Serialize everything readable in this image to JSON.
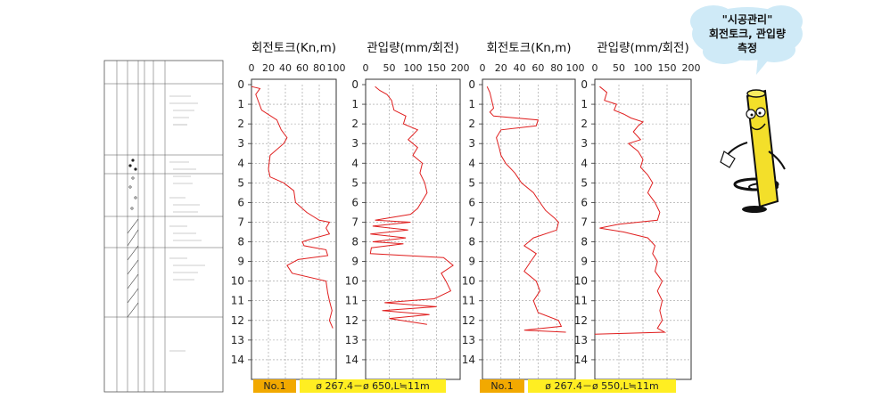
{
  "colors": {
    "series": "#e02020",
    "label_orange": "#f2a900",
    "label_yellow": "#ffee22",
    "bubble": "#cfeaf7",
    "mascot": "#f3df2a"
  },
  "bubble": {
    "line1": "\"시공관리\"",
    "line2": "회전토크, 관입량",
    "line3": "측정"
  },
  "labels": {
    "left": {
      "no": "No.1",
      "spec": "ø 267.4－ø 650,L≒11m"
    },
    "right": {
      "no": "No.1",
      "spec": "ø 267.4－ø 550,L≒11m"
    }
  },
  "boring_log": {
    "note": ""
  },
  "chart_data": [
    {
      "type": "line",
      "title": "회전토크(Kn,m)",
      "x_ticks": [
        0,
        20,
        40,
        60,
        80,
        100
      ],
      "xlim": [
        0,
        100
      ],
      "ylim": [
        0,
        15
      ],
      "y_ticks": [
        0,
        1,
        2,
        3,
        4,
        5,
        6,
        7,
        8,
        9,
        10,
        11,
        12,
        13,
        14
      ],
      "y_inverted": true,
      "series": [
        {
          "points": [
            [
              0,
              0.1
            ],
            [
              10,
              0.2
            ],
            [
              5,
              0.5
            ],
            [
              12,
              1.3
            ],
            [
              30,
              1.8
            ],
            [
              35,
              2.3
            ],
            [
              42,
              2.7
            ],
            [
              38,
              3.0
            ],
            [
              22,
              3.6
            ],
            [
              20,
              4.3
            ],
            [
              22,
              4.7
            ],
            [
              38,
              5.0
            ],
            [
              50,
              5.4
            ],
            [
              52,
              6.0
            ],
            [
              65,
              6.5
            ],
            [
              80,
              6.9
            ],
            [
              92,
              7.0
            ],
            [
              88,
              7.3
            ],
            [
              92,
              7.6
            ],
            [
              75,
              7.8
            ],
            [
              60,
              8.0
            ],
            [
              62,
              8.2
            ],
            [
              75,
              8.3
            ],
            [
              88,
              8.4
            ],
            [
              90,
              8.7
            ],
            [
              55,
              8.9
            ],
            [
              42,
              9.2
            ],
            [
              48,
              9.6
            ],
            [
              88,
              10.0
            ],
            [
              90,
              10.6
            ],
            [
              92,
              11.0
            ],
            [
              95,
              11.5
            ],
            [
              92,
              12.0
            ],
            [
              96,
              12.4
            ]
          ]
        }
      ]
    },
    {
      "type": "line",
      "title": "관입량(mm/회전)",
      "x_ticks": [
        0,
        50,
        100,
        150,
        200
      ],
      "xlim": [
        0,
        200
      ],
      "ylim": [
        0,
        15
      ],
      "y_ticks": [
        0,
        1,
        2,
        3,
        4,
        5,
        6,
        7,
        8,
        9,
        10,
        11,
        12,
        13,
        14
      ],
      "y_inverted": true,
      "series": [
        {
          "points": [
            [
              20,
              0.1
            ],
            [
              30,
              0.3
            ],
            [
              45,
              0.5
            ],
            [
              55,
              0.8
            ],
            [
              60,
              1.3
            ],
            [
              85,
              1.6
            ],
            [
              80,
              2.0
            ],
            [
              110,
              2.3
            ],
            [
              90,
              2.8
            ],
            [
              110,
              3.2
            ],
            [
              100,
              3.6
            ],
            [
              120,
              4.0
            ],
            [
              115,
              4.5
            ],
            [
              125,
              5.0
            ],
            [
              130,
              5.5
            ],
            [
              120,
              5.9
            ],
            [
              110,
              6.3
            ],
            [
              95,
              6.6
            ],
            [
              20,
              6.9
            ],
            [
              95,
              7.0
            ],
            [
              15,
              7.2
            ],
            [
              90,
              7.4
            ],
            [
              10,
              7.6
            ],
            [
              85,
              7.8
            ],
            [
              15,
              8.0
            ],
            [
              80,
              8.1
            ],
            [
              12,
              8.3
            ],
            [
              10,
              8.6
            ],
            [
              165,
              8.8
            ],
            [
              185,
              9.2
            ],
            [
              160,
              9.6
            ],
            [
              170,
              10.0
            ],
            [
              180,
              10.5
            ],
            [
              145,
              10.9
            ],
            [
              40,
              11.1
            ],
            [
              150,
              11.3
            ],
            [
              35,
              11.5
            ],
            [
              135,
              11.7
            ],
            [
              50,
              11.9
            ],
            [
              130,
              12.2
            ]
          ]
        }
      ]
    },
    {
      "type": "line",
      "title": "회전토크(Kn,m)",
      "x_ticks": [
        0,
        20,
        40,
        60,
        80,
        100
      ],
      "xlim": [
        0,
        100
      ],
      "ylim": [
        0,
        15
      ],
      "y_ticks": [
        0,
        1,
        2,
        3,
        4,
        5,
        6,
        7,
        8,
        9,
        10,
        11,
        12,
        13,
        14
      ],
      "y_inverted": true,
      "series": [
        {
          "points": [
            [
              5,
              0.1
            ],
            [
              8,
              0.4
            ],
            [
              10,
              0.8
            ],
            [
              12,
              1.2
            ],
            [
              8,
              1.4
            ],
            [
              12,
              1.6
            ],
            [
              60,
              1.8
            ],
            [
              58,
              2.1
            ],
            [
              20,
              2.3
            ],
            [
              15,
              2.7
            ],
            [
              18,
              3.2
            ],
            [
              20,
              3.6
            ],
            [
              25,
              4.0
            ],
            [
              35,
              4.5
            ],
            [
              42,
              5.0
            ],
            [
              55,
              5.5
            ],
            [
              62,
              6.0
            ],
            [
              68,
              6.4
            ],
            [
              78,
              6.8
            ],
            [
              82,
              7.0
            ],
            [
              80,
              7.4
            ],
            [
              55,
              7.8
            ],
            [
              45,
              8.2
            ],
            [
              58,
              8.6
            ],
            [
              52,
              9.0
            ],
            [
              45,
              9.5
            ],
            [
              58,
              10.0
            ],
            [
              62,
              10.5
            ],
            [
              55,
              11.0
            ],
            [
              60,
              11.6
            ],
            [
              82,
              12.0
            ],
            [
              85,
              12.3
            ],
            [
              45,
              12.5
            ],
            [
              90,
              12.6
            ]
          ]
        }
      ]
    },
    {
      "type": "line",
      "title": "관입량(mm/회전)",
      "x_ticks": [
        0,
        50,
        100,
        150,
        200
      ],
      "xlim": [
        0,
        200
      ],
      "ylim": [
        0,
        15
      ],
      "y_ticks": [
        0,
        1,
        2,
        3,
        4,
        5,
        6,
        7,
        8,
        9,
        10,
        11,
        12,
        13,
        14
      ],
      "y_inverted": true,
      "series": [
        {
          "points": [
            [
              10,
              0.1
            ],
            [
              25,
              0.4
            ],
            [
              20,
              0.8
            ],
            [
              45,
              1.0
            ],
            [
              40,
              1.3
            ],
            [
              60,
              1.5
            ],
            [
              75,
              1.7
            ],
            [
              100,
              1.9
            ],
            [
              90,
              2.1
            ],
            [
              80,
              2.4
            ],
            [
              95,
              2.8
            ],
            [
              70,
              3.0
            ],
            [
              90,
              3.4
            ],
            [
              100,
              3.8
            ],
            [
              95,
              4.2
            ],
            [
              110,
              4.6
            ],
            [
              120,
              5.0
            ],
            [
              110,
              5.5
            ],
            [
              125,
              6.0
            ],
            [
              135,
              6.5
            ],
            [
              130,
              6.9
            ],
            [
              50,
              7.1
            ],
            [
              10,
              7.3
            ],
            [
              60,
              7.5
            ],
            [
              110,
              7.8
            ],
            [
              125,
              8.2
            ],
            [
              120,
              8.6
            ],
            [
              130,
              9.0
            ],
            [
              125,
              9.5
            ],
            [
              140,
              10.0
            ],
            [
              130,
              10.5
            ],
            [
              140,
              11.0
            ],
            [
              135,
              11.5
            ],
            [
              140,
              12.0
            ],
            [
              130,
              12.4
            ],
            [
              145,
              12.6
            ],
            [
              0,
              12.7
            ]
          ]
        }
      ]
    }
  ]
}
